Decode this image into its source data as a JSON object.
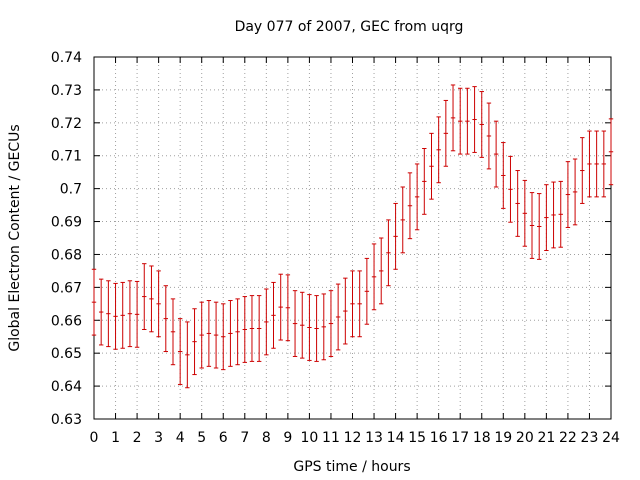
{
  "chart_data": {
    "type": "scatter",
    "title": "Day 077 of 2007, GEC from uqrg",
    "xlabel": "GPS time / hours",
    "ylabel": "Global Electron Content / GECUs",
    "xlim": [
      0,
      24
    ],
    "ylim": [
      0.63,
      0.74
    ],
    "grid": true,
    "x_ticks": [
      "0",
      "1",
      "2",
      "3",
      "4",
      "5",
      "6",
      "7",
      "8",
      "9",
      "10",
      "11",
      "12",
      "13",
      "14",
      "15",
      "16",
      "17",
      "18",
      "19",
      "20",
      "21",
      "22",
      "23",
      "24"
    ],
    "y_ticks": [
      "0.63",
      "0.64",
      "0.65",
      "0.66",
      "0.67",
      "0.68",
      "0.69",
      "0.7",
      "0.71",
      "0.72",
      "0.73",
      "0.74"
    ],
    "error": 0.01,
    "x": [
      0,
      0.333,
      0.667,
      1,
      1.333,
      1.667,
      2,
      2.333,
      2.667,
      3,
      3.333,
      3.667,
      4,
      4.333,
      4.667,
      5,
      5.333,
      5.667,
      6,
      6.333,
      6.667,
      7,
      7.333,
      7.667,
      8,
      8.333,
      8.667,
      9,
      9.333,
      9.667,
      10,
      10.333,
      10.667,
      11,
      11.333,
      11.667,
      12,
      12.333,
      12.667,
      13,
      13.333,
      13.667,
      14,
      14.333,
      14.667,
      15,
      15.333,
      15.667,
      16,
      16.333,
      16.667,
      17,
      17.333,
      17.667,
      18,
      18.333,
      18.667,
      19,
      19.333,
      19.667,
      20,
      20.333,
      20.667,
      21,
      21.333,
      21.667,
      22,
      22.333,
      22.667,
      23,
      23.333,
      23.667,
      24
    ],
    "y": [
      0.6655,
      0.6625,
      0.662,
      0.6612,
      0.6615,
      0.662,
      0.6618,
      0.6672,
      0.6665,
      0.665,
      0.6605,
      0.6565,
      0.6505,
      0.6495,
      0.6535,
      0.6555,
      0.656,
      0.6555,
      0.655,
      0.656,
      0.6565,
      0.6572,
      0.6575,
      0.6575,
      0.6595,
      0.6615,
      0.664,
      0.6638,
      0.659,
      0.6585,
      0.6578,
      0.6575,
      0.658,
      0.659,
      0.661,
      0.6628,
      0.665,
      0.665,
      0.6688,
      0.6732,
      0.675,
      0.6805,
      0.6855,
      0.6905,
      0.6948,
      0.6975,
      0.7022,
      0.7068,
      0.7118,
      0.7168,
      0.7215,
      0.7205,
      0.7205,
      0.721,
      0.7195,
      0.716,
      0.7105,
      0.704,
      0.6998,
      0.6955,
      0.6925,
      0.6888,
      0.6885,
      0.6912,
      0.692,
      0.6922,
      0.6982,
      0.699,
      0.7055,
      0.7075,
      0.7075,
      0.7075,
      0.7112
    ]
  }
}
